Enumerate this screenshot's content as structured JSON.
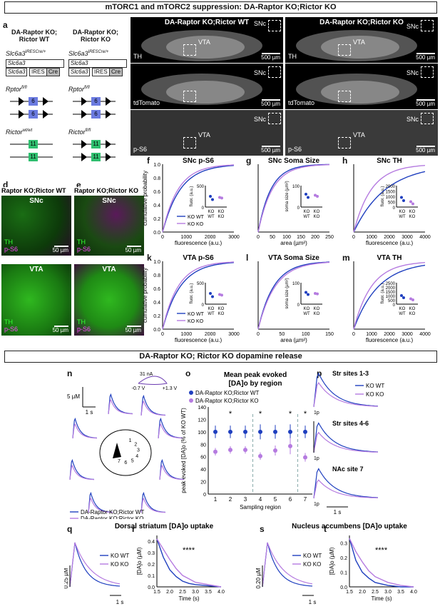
{
  "header_top": "mTORC1 and mTORC2 suppression: DA-Raptor KO;Rictor KO",
  "header_mid": "DA-Raptor KO; Rictor KO dopamine release",
  "panel_letters": [
    "a",
    "b",
    "c",
    "d",
    "e",
    "f",
    "g",
    "h",
    "i",
    "j",
    "k",
    "l",
    "m",
    "n",
    "o",
    "p",
    "q",
    "r",
    "s",
    "t"
  ],
  "genotypes": {
    "wt_title": "DA-Raptor KO; Rictor WT",
    "ko_title": "DA-Raptor KO; Rictor KO",
    "slc6a3_wt": "Slc6a3",
    "slc6a3_het_sup": "IRESCre/+",
    "ires": "IRES",
    "cre": "Cre",
    "rptor": "Rptor",
    "rptor_sup": "fl/fl",
    "rictor_wt": "Rictor",
    "rictor_wt_sup": "wt/wt",
    "rictor_ko_sup": "fl/fl",
    "exon_rptor": "6",
    "exon_rictor": "11"
  },
  "micrographs": {
    "b_title": "DA-Raptor KO;Rictor WT",
    "c_title": "DA-Raptor KO;Rictor KO",
    "rows": [
      "TH",
      "tdTomato",
      "p-S6"
    ],
    "snc": "SNc",
    "vta": "VTA",
    "scale": "500 µm"
  },
  "fluo": {
    "d_title": "Raptor KO;Rictor WT",
    "e_title": "Raptor KO;Rictor KO",
    "snc": "SNc",
    "vta": "VTA",
    "th": "TH",
    "ps6": "p-S6",
    "scale": "50 µm"
  },
  "cdf_panels": {
    "f": {
      "title": "SNc p-S6",
      "xlabel": "fluorescence (a.u.)",
      "ylabel": "cumulative probability",
      "inset_ylabel": "fluor. (a.u.)",
      "xticks": [
        "0",
        "1000",
        "2000",
        "3000"
      ],
      "inset_yticks": [
        "500",
        "0"
      ]
    },
    "g": {
      "title": "SNc Soma Size",
      "xlabel": "area (µm²)",
      "inset_ylabel": "soma size (µm²)",
      "xticks": [
        "0",
        "50",
        "100",
        "150",
        "200",
        "250"
      ],
      "inset_yticks": [
        "100",
        "0"
      ]
    },
    "h": {
      "title": "SNc TH",
      "xlabel": "fluorescence (a.u.)",
      "inset_ylabel": "fluor. (a.u.)",
      "xticks": [
        "0",
        "1000",
        "2000",
        "3000",
        "4000"
      ],
      "inset_yticks": [
        "2000",
        "1500",
        "1000",
        "500",
        "0"
      ]
    },
    "k": {
      "title": "VTA p-S6",
      "xlabel": "fluorescence (a.u.)",
      "ylabel": "cumulative probability",
      "inset_ylabel": "fluor. (a.u.)",
      "xticks": [
        "0",
        "1000",
        "2000",
        "3000"
      ],
      "inset_yticks": [
        "500",
        "0"
      ]
    },
    "l": {
      "title": "VTA Soma Size",
      "xlabel": "area (µm²)",
      "inset_ylabel": "soma size (µm²)",
      "xticks": [
        "0",
        "50",
        "100",
        "150"
      ],
      "inset_yticks": [
        "100",
        "0"
      ]
    },
    "m": {
      "title": "VTA TH",
      "xlabel": "fluorescence (a.u.)",
      "inset_ylabel": "fluor. (a.u.)",
      "xticks": [
        "0",
        "1000",
        "2000",
        "3000",
        "4000"
      ],
      "inset_yticks": [
        "2500",
        "2000",
        "1500",
        "1000",
        "500",
        "0"
      ]
    },
    "yticks": [
      "0.0",
      "0.2",
      "0.4",
      "0.6",
      "0.8",
      "1.0"
    ],
    "legend_wt": "KO WT",
    "legend_ko": "KO KO",
    "inset_x": [
      "KO",
      "WT",
      "KO",
      "KO"
    ]
  },
  "n_panel": {
    "scale_y": "0.5 µM",
    "scale_x": "1 s",
    "cv_scale": "31 nA",
    "cv_left": "-0.7 V",
    "cv_right": "+1.3 V",
    "legend_wt": "DA-Raptor KO;Rictor WT",
    "legend_ko": "DA-Raptor KO;Rictor KO",
    "site_labels": [
      "1",
      "2",
      "3",
      "4",
      "5",
      "6",
      "7"
    ]
  },
  "o_panel": {
    "title_line1": "Mean peak evoked",
    "title_line2": "[DA]o by region",
    "legend_wt": "DA-Raptor KO;Rictor WT",
    "legend_ko": "DA-Raptor KO;Rictor KO",
    "ylabel": "peak evoked [DA]o (% of KO WT)",
    "xlabel": "Sampling region",
    "yticks": [
      "0",
      "20",
      "40",
      "60",
      "80",
      "100",
      "120",
      "140"
    ],
    "sig": "*"
  },
  "p_panel": {
    "labels": [
      "Str sites 1-3",
      "Str sites 4-6",
      "NAc site 7"
    ],
    "legend_wt": "KO WT",
    "legend_ko": "KO KO",
    "pulse": "1p",
    "scale_y": "0.5 µM",
    "scale_x": "1 s"
  },
  "uptake": {
    "dorsal_title": "Dorsal striatum [DA]o uptake",
    "nac_title": "Nucleus  accumbens [DA]o uptake",
    "q_scale_y": "0.25 µM",
    "s_scale_y": "0.20 µM",
    "scale_x": "1 s",
    "legend_wt": "KO WT",
    "legend_ko": "KO KO",
    "r_ylabel": "[DA]o (µM)",
    "xlabel": "Time (s)",
    "r_yticks": [
      "0.0",
      "0.1",
      "0.2",
      "0.3",
      "0.4"
    ],
    "t_yticks": [
      "0.0",
      "0.1",
      "0.2",
      "0.3"
    ],
    "xticks": [
      "1.5",
      "2.0",
      "2.5",
      "3.0",
      "3.5",
      "4.0"
    ],
    "sig": "****"
  },
  "colors": {
    "wt": "#1f3fbf",
    "ko": "#b57be0",
    "th_green": "#39d12f",
    "ps6_magenta": "#e040e0"
  },
  "chart_data": [
    {
      "type": "scatter",
      "title": "Mean peak evoked [DA]o by region",
      "xlabel": "Sampling region",
      "ylabel": "peak evoked [DA]o (% of KO WT)",
      "ylim": [
        0,
        140
      ],
      "x": [
        1,
        2,
        3,
        4,
        5,
        6,
        7
      ],
      "series": [
        {
          "name": "DA-Raptor KO;Rictor WT",
          "values": [
            100,
            100,
            100,
            100,
            100,
            100,
            100
          ],
          "err": [
            10,
            10,
            10,
            12,
            11,
            12,
            10
          ]
        },
        {
          "name": "DA-Raptor KO;Rictor KO",
          "values": [
            68,
            71,
            71,
            61,
            70,
            77,
            59
          ],
          "err": [
            6,
            6,
            6,
            6,
            8,
            13,
            7
          ]
        }
      ],
      "significant": [
        2,
        4,
        6,
        7
      ]
    },
    {
      "type": "line",
      "title": "",
      "xlabel": "Time (s)",
      "ylabel": "[DA]o (µM)",
      "xlim": [
        1.5,
        4.0
      ],
      "ylim": [
        0,
        0.45
      ],
      "x": [
        1.5,
        1.75,
        2.0,
        2.25,
        2.5,
        2.75,
        3.0,
        3.5,
        4.0
      ],
      "series": [
        {
          "name": "KO WT",
          "values": [
            0.42,
            0.26,
            0.15,
            0.09,
            0.05,
            0.03,
            0.02,
            0.01,
            0.0
          ]
        },
        {
          "name": "KO KO",
          "values": [
            0.42,
            0.33,
            0.24,
            0.16,
            0.1,
            0.07,
            0.04,
            0.02,
            0.0
          ]
        }
      ]
    },
    {
      "type": "line",
      "title": "",
      "xlabel": "Time (s)",
      "ylabel": "[DA]o (µM)",
      "xlim": [
        1.5,
        4.0
      ],
      "ylim": [
        0,
        0.35
      ],
      "x": [
        1.5,
        1.75,
        2.0,
        2.25,
        2.5,
        2.75,
        3.0,
        3.5,
        4.0
      ],
      "series": [
        {
          "name": "KO WT",
          "values": [
            0.33,
            0.18,
            0.1,
            0.06,
            0.03,
            0.02,
            0.01,
            0.0,
            0.0
          ]
        },
        {
          "name": "KO KO",
          "values": [
            0.33,
            0.24,
            0.17,
            0.11,
            0.07,
            0.05,
            0.03,
            0.01,
            0.0
          ]
        }
      ]
    }
  ]
}
